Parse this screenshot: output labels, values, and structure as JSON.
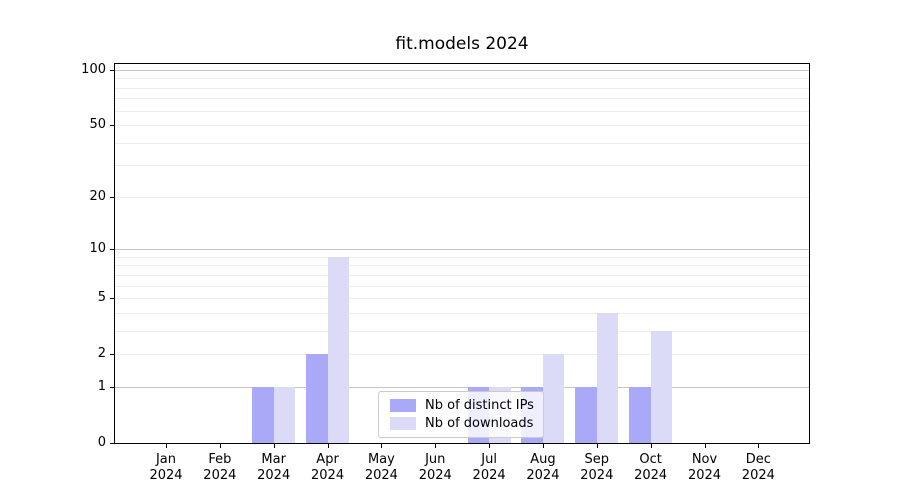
{
  "title": "fit.models 2024",
  "chart_data": {
    "type": "bar",
    "title": "fit.models 2024",
    "categories": [
      "Jan",
      "Feb",
      "Mar",
      "Apr",
      "May",
      "Jun",
      "Jul",
      "Aug",
      "Sep",
      "Oct",
      "Nov",
      "Dec"
    ],
    "year": "2024",
    "series": [
      {
        "name": "Nb of distinct IPs",
        "color": "#a9a9f7",
        "values": [
          0,
          0,
          1,
          2,
          0,
          0,
          1,
          1,
          1,
          1,
          0,
          0
        ]
      },
      {
        "name": "Nb of downloads",
        "color": "#dbdbf8",
        "values": [
          0,
          0,
          1,
          9,
          0,
          0,
          1,
          2,
          4,
          3,
          0,
          0
        ]
      }
    ],
    "xlabel": "",
    "ylabel": "",
    "y_axis": {
      "scale": "log1p",
      "tick_values": [
        0,
        1,
        2,
        5,
        10,
        20,
        50,
        100
      ],
      "major_gridlines": [
        1,
        10,
        100
      ],
      "minor_gridlines": [
        2,
        3,
        4,
        5,
        6,
        7,
        8,
        9,
        20,
        30,
        40,
        50,
        60,
        70,
        80,
        90
      ],
      "max_value": 100
    },
    "grid": true,
    "legend_position": "lower center"
  },
  "colors": {
    "major_grid": "#c6c6c6",
    "minor_grid": "#ededed",
    "axis": "#000000",
    "text": "#000000",
    "legend_border": "#cbcbcb"
  }
}
